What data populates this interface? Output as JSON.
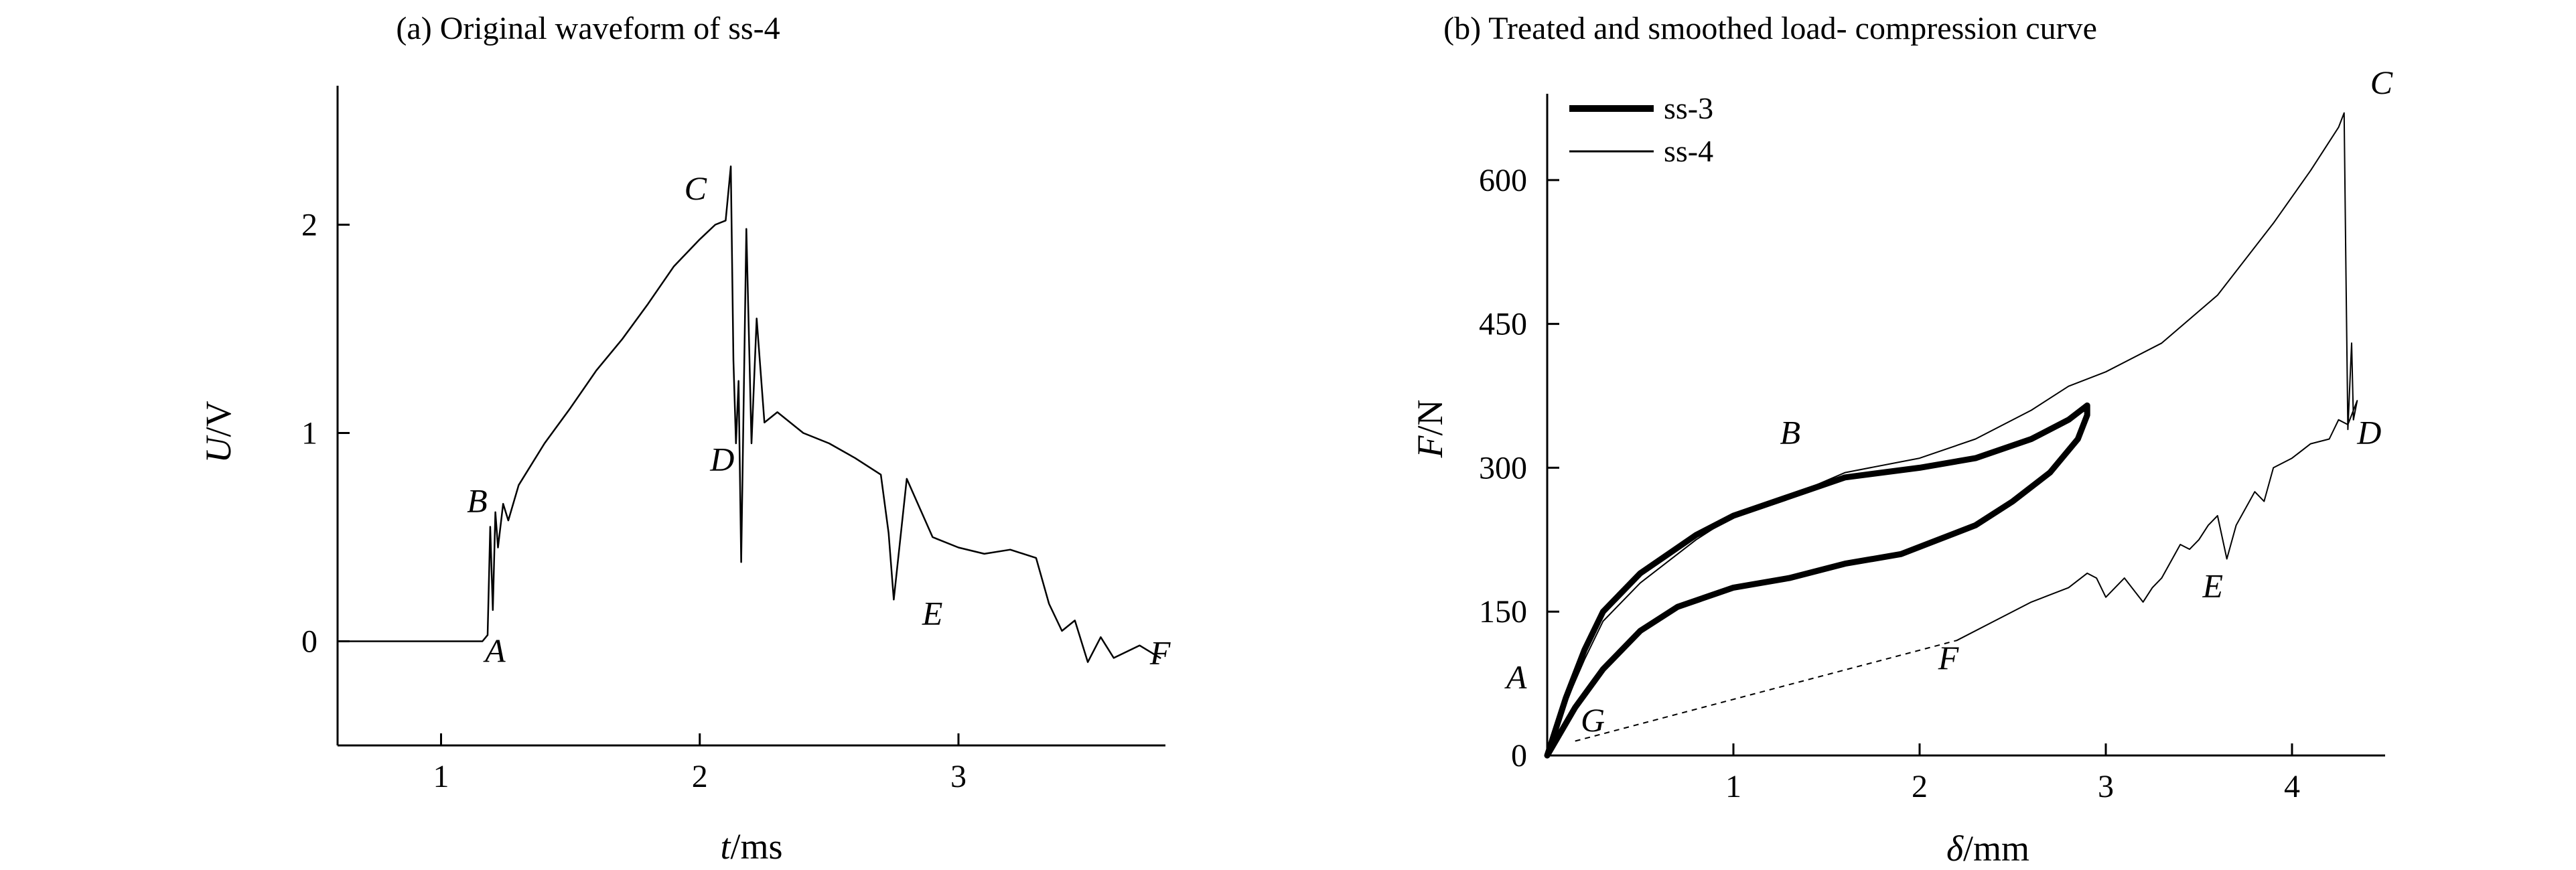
{
  "chart_data": [
    {
      "type": "line",
      "title": "(a) Original waveform of ss-4",
      "xlabel": "t/ms",
      "ylabel": "U/V",
      "xlim": [
        0.6,
        3.8
      ],
      "ylim": [
        -0.5,
        2.5
      ],
      "xticks": [
        {
          "v": 1,
          "label": "1"
        },
        {
          "v": 2,
          "label": "2"
        },
        {
          "v": 3,
          "label": "3"
        }
      ],
      "yticks": [
        {
          "v": 0,
          "label": "0"
        },
        {
          "v": 1,
          "label": "1"
        },
        {
          "v": 2,
          "label": "2"
        }
      ],
      "grid": false,
      "series": [
        {
          "x": [
            0.6,
            0.7,
            0.8,
            0.9,
            1.0,
            1.1,
            1.16,
            1.18,
            1.19,
            1.2,
            1.21,
            1.22,
            1.24,
            1.26,
            1.3,
            1.4,
            1.5,
            1.6,
            1.7,
            1.8,
            1.9,
            2.0,
            2.06,
            2.1,
            2.12,
            2.13,
            2.14,
            2.15,
            2.16,
            2.18,
            2.2,
            2.22,
            2.25,
            2.3,
            2.4,
            2.5,
            2.6,
            2.7,
            2.73,
            2.75,
            2.8,
            2.9,
            3.0,
            3.1,
            3.2,
            3.3,
            3.35,
            3.4,
            3.45,
            3.5,
            3.55,
            3.6,
            3.7,
            3.78
          ],
          "y": [
            0.0,
            0.0,
            0.0,
            0.0,
            0.0,
            0.0,
            0.0,
            0.03,
            0.55,
            0.15,
            0.62,
            0.45,
            0.66,
            0.58,
            0.75,
            0.95,
            1.12,
            1.3,
            1.45,
            1.62,
            1.8,
            1.93,
            2.0,
            2.02,
            2.28,
            1.35,
            0.95,
            1.25,
            0.38,
            1.98,
            0.95,
            1.55,
            1.05,
            1.1,
            1.0,
            0.95,
            0.88,
            0.8,
            0.52,
            0.2,
            0.78,
            0.5,
            0.45,
            0.42,
            0.44,
            0.4,
            0.18,
            0.05,
            0.1,
            -0.1,
            0.02,
            -0.08,
            -0.02,
            -0.08
          ]
        }
      ],
      "annotations": [
        {
          "text": "A",
          "x": 1.17,
          "y": -0.1
        },
        {
          "text": "B",
          "x": 1.1,
          "y": 0.62
        },
        {
          "text": "C",
          "x": 1.94,
          "y": 2.12
        },
        {
          "text": "D",
          "x": 2.04,
          "y": 0.82
        },
        {
          "text": "E",
          "x": 2.86,
          "y": 0.08
        },
        {
          "text": "F",
          "x": 3.74,
          "y": -0.11
        }
      ]
    },
    {
      "type": "line",
      "title": "(b) Treated and smoothed load- compression curve",
      "xlabel": "δ/mm",
      "ylabel": "F/N",
      "xlim": [
        0,
        4.5
      ],
      "ylim": [
        0,
        690
      ],
      "xticks": [
        {
          "v": 1,
          "label": "1"
        },
        {
          "v": 2,
          "label": "2"
        },
        {
          "v": 3,
          "label": "3"
        },
        {
          "v": 4,
          "label": "4"
        }
      ],
      "yticks": [
        {
          "v": 0,
          "label": "0"
        },
        {
          "v": 150,
          "label": "150"
        },
        {
          "v": 300,
          "label": "300"
        },
        {
          "v": 450,
          "label": "450"
        },
        {
          "v": 600,
          "label": "600"
        }
      ],
      "grid": false,
      "legend": "top-left",
      "series": [
        {
          "name": "ss-3",
          "x": [
            0.0,
            0.1,
            0.2,
            0.3,
            0.5,
            0.8,
            1.0,
            1.3,
            1.6,
            2.0,
            2.3,
            2.6,
            2.8,
            2.9,
            2.9,
            2.85,
            2.7,
            2.5,
            2.3,
            2.1,
            1.9,
            1.6,
            1.3,
            1.0,
            0.7,
            0.5,
            0.3,
            0.15,
            0.0
          ],
          "y": [
            0,
            60,
            110,
            150,
            190,
            230,
            250,
            270,
            290,
            300,
            310,
            330,
            350,
            365,
            355,
            330,
            295,
            265,
            240,
            225,
            210,
            200,
            185,
            175,
            155,
            130,
            90,
            50,
            0
          ]
        },
        {
          "name": "ss-4",
          "x": [
            0.0,
            0.1,
            0.2,
            0.3,
            0.5,
            0.8,
            1.0,
            1.3,
            1.6,
            2.0,
            2.3,
            2.6,
            2.8,
            3.0,
            3.3,
            3.6,
            3.9,
            4.1,
            4.2,
            4.25,
            4.28,
            4.29,
            4.3,
            4.32,
            4.33,
            4.35,
            4.3,
            4.25,
            4.2,
            4.1,
            4.0,
            3.9,
            3.85,
            3.8,
            3.7,
            3.65,
            3.6,
            3.55,
            3.5,
            3.45,
            3.4,
            3.3,
            3.25,
            3.2,
            3.1,
            3.0,
            2.95,
            2.9,
            2.8,
            2.6,
            2.4,
            2.2
          ],
          "y": [
            0,
            55,
            100,
            140,
            180,
            225,
            250,
            270,
            295,
            310,
            330,
            360,
            385,
            400,
            430,
            480,
            555,
            610,
            640,
            655,
            670,
            500,
            340,
            430,
            350,
            370,
            345,
            350,
            330,
            325,
            310,
            300,
            265,
            275,
            240,
            205,
            250,
            240,
            225,
            215,
            220,
            185,
            175,
            160,
            185,
            165,
            185,
            190,
            175,
            160,
            140,
            120
          ]
        }
      ],
      "dashed_segment": {
        "x": [
          0.15,
          2.2
        ],
        "y": [
          15,
          120
        ]
      },
      "annotations": [
        {
          "text": "A",
          "x": -0.22,
          "y": 70
        },
        {
          "text": "B",
          "x": 1.25,
          "y": 325
        },
        {
          "text": "C",
          "x": 4.42,
          "y": 690
        },
        {
          "text": "D",
          "x": 4.35,
          "y": 325
        },
        {
          "text": "E",
          "x": 3.52,
          "y": 165
        },
        {
          "text": "F",
          "x": 2.1,
          "y": 90
        },
        {
          "text": "G",
          "x": 0.18,
          "y": 25
        }
      ]
    }
  ]
}
